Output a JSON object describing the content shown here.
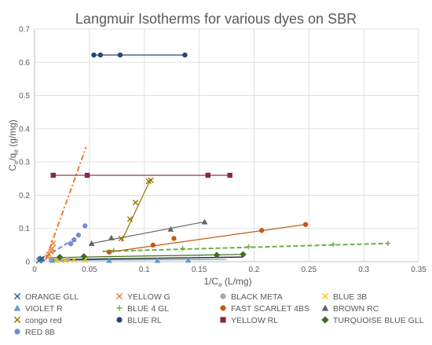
{
  "chart_data": {
    "type": "scatter",
    "title": "Langmuir Isotherms for various dyes on SBR",
    "xlabel": "1/C",
    "xlabel_sub": "e",
    "xlabel_unit": " (L/mg)",
    "ylabel": "C",
    "ylabel_sub1": "e",
    "ylabel_mid": "/q",
    "ylabel_sub2": "e",
    "ylabel_unit": " (g/mg)",
    "xlim": [
      0,
      0.35
    ],
    "ylim": [
      0,
      0.7
    ],
    "xticks": [
      0,
      0.05,
      0.1,
      0.15,
      0.2,
      0.25,
      0.3,
      0.35
    ],
    "yticks": [
      0,
      0.1,
      0.2,
      0.3,
      0.4,
      0.5,
      0.6,
      0.7
    ],
    "xtick_labels": [
      "0",
      "0.05",
      "0.1",
      "0.15",
      "0.2",
      "0.25",
      "0.3",
      "0.35"
    ],
    "ytick_labels": [
      "0",
      "0.1",
      "0.2",
      "0.3",
      "0.4",
      "0.5",
      "0.6",
      "0.7"
    ],
    "grid": true,
    "legend_position": "bottom",
    "series": [
      {
        "name": "ORANGE GLL",
        "marker": "x",
        "color": "#2e5c8a",
        "points": [
          [
            0.004,
            0.003
          ],
          [
            0.005,
            0.006
          ],
          [
            0.006,
            0.008
          ],
          [
            0.007,
            0.01
          ]
        ],
        "trend": {
          "style": "solid",
          "from": [
            0.003,
            0.002
          ],
          "to": [
            0.008,
            0.011
          ]
        }
      },
      {
        "name": "YELLOW G",
        "marker": "x",
        "color": "#ed7d31",
        "points": [
          [
            0.012,
            0.015
          ],
          [
            0.013,
            0.022
          ],
          [
            0.015,
            0.03
          ],
          [
            0.016,
            0.04
          ],
          [
            0.017,
            0.055
          ]
        ],
        "trend": {
          "style": "dashdot",
          "from": [
            0.01,
            0.005
          ],
          "to": [
            0.047,
            0.345
          ]
        }
      },
      {
        "name": "BLACK META",
        "marker": "circle",
        "color": "#a5a5a5",
        "points": [
          [
            0.015,
            0.006
          ],
          [
            0.02,
            0.006
          ],
          [
            0.025,
            0.006
          ],
          [
            0.03,
            0.007
          ]
        ],
        "trend": {
          "style": "solid",
          "from": [
            0.014,
            0.006
          ],
          "to": [
            0.032,
            0.007
          ]
        }
      },
      {
        "name": "BLUE 3B",
        "marker": "x",
        "color": "#ffc000",
        "points": [
          [
            0.02,
            0.004
          ],
          [
            0.028,
            0.004
          ],
          [
            0.036,
            0.005
          ],
          [
            0.046,
            0.005
          ]
        ],
        "trend": {
          "style": "solid",
          "from": [
            0.018,
            0.004
          ],
          "to": [
            0.048,
            0.005
          ]
        }
      },
      {
        "name": "VIOLET R",
        "marker": "triangle",
        "color": "#5b9bd5",
        "points": [
          [
            0.016,
            0.004
          ],
          [
            0.068,
            0.004
          ],
          [
            0.112,
            0.004
          ],
          [
            0.14,
            0.005
          ]
        ],
        "trend": {
          "style": "solid",
          "from": [
            0.014,
            0.004
          ],
          "to": [
            0.175,
            0.007
          ]
        }
      },
      {
        "name": "BLUE 4 GL",
        "marker": "plus",
        "color": "#70ad47",
        "points": [
          [
            0.072,
            0.034
          ],
          [
            0.135,
            0.04
          ],
          [
            0.195,
            0.045
          ],
          [
            0.272,
            0.052
          ],
          [
            0.322,
            0.055
          ]
        ],
        "trend": {
          "style": "dashed",
          "from": [
            0.062,
            0.031
          ],
          "to": [
            0.322,
            0.055
          ]
        }
      },
      {
        "name": "FAST SCARLET 4BS",
        "marker": "circle",
        "color": "#c55a11",
        "points": [
          [
            0.068,
            0.029
          ],
          [
            0.108,
            0.05
          ],
          [
            0.127,
            0.07
          ],
          [
            0.207,
            0.094
          ],
          [
            0.247,
            0.112
          ]
        ],
        "trend": {
          "style": "solid",
          "from": [
            0.068,
            0.029
          ],
          "to": [
            0.247,
            0.112
          ]
        }
      },
      {
        "name": "BROWN RC",
        "marker": "triangle",
        "color": "#636363",
        "points": [
          [
            0.052,
            0.055
          ],
          [
            0.07,
            0.072
          ],
          [
            0.124,
            0.098
          ],
          [
            0.155,
            0.12
          ]
        ],
        "trend": {
          "style": "solid",
          "from": [
            0.052,
            0.055
          ],
          "to": [
            0.155,
            0.12
          ]
        }
      },
      {
        "name": "congo red",
        "marker": "x",
        "color": "#997300",
        "points": [
          [
            0.079,
            0.07
          ],
          [
            0.087,
            0.128
          ],
          [
            0.092,
            0.178
          ],
          [
            0.104,
            0.242
          ],
          [
            0.106,
            0.245
          ]
        ],
        "trend": {
          "style": "solid",
          "from": [
            0.079,
            0.06
          ],
          "to": [
            0.106,
            0.25
          ]
        }
      },
      {
        "name": "BLUE RL",
        "marker": "circle",
        "color": "#264478",
        "points": [
          [
            0.054,
            0.622
          ],
          [
            0.06,
            0.622
          ],
          [
            0.078,
            0.622
          ],
          [
            0.137,
            0.622
          ]
        ],
        "trend": {
          "style": "solid",
          "from": [
            0.054,
            0.622
          ],
          "to": [
            0.137,
            0.622
          ]
        }
      },
      {
        "name": "YELLOW RL",
        "marker": "square",
        "color": "#8b2252",
        "points": [
          [
            0.017,
            0.26
          ],
          [
            0.048,
            0.26
          ],
          [
            0.158,
            0.26
          ],
          [
            0.178,
            0.26
          ]
        ],
        "trend": {
          "style": "solid",
          "from": [
            0.017,
            0.26
          ],
          "to": [
            0.178,
            0.26
          ]
        }
      },
      {
        "name": "TURQUOISE BLUE GLL",
        "marker": "diamond",
        "color": "#3a6e1f",
        "points": [
          [
            0.023,
            0.014
          ],
          [
            0.045,
            0.016
          ],
          [
            0.166,
            0.02
          ],
          [
            0.19,
            0.022
          ]
        ],
        "trend": {
          "style": "solid",
          "from": [
            0.01,
            0.012
          ],
          "to": [
            0.19,
            0.022
          ]
        }
      },
      {
        "name": "RED 8B",
        "marker": "circle",
        "color": "#6f8fd0",
        "points": [
          [
            0.033,
            0.054
          ],
          [
            0.036,
            0.066
          ],
          [
            0.04,
            0.08
          ],
          [
            0.046,
            0.108
          ]
        ],
        "trend": {
          "style": "dashed",
          "from": [
            0.005,
            0.005
          ],
          "to": [
            0.033,
            0.062
          ]
        }
      }
    ]
  },
  "colors": {
    "grid": "#d9d9d9",
    "axis": "#bfbfbf",
    "text": "#595959",
    "title": "#595959",
    "yellow_g_extra_trend": "#ed7d31"
  }
}
